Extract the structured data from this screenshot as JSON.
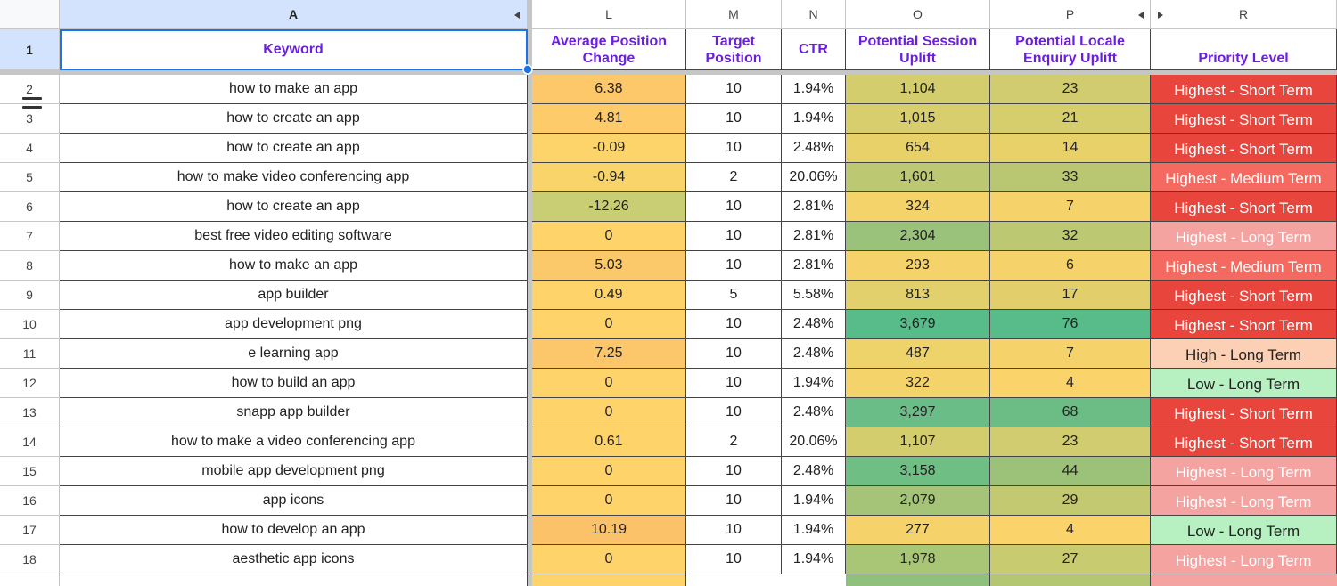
{
  "columns": [
    "A",
    "L",
    "M",
    "N",
    "O",
    "P",
    "R"
  ],
  "row_numbers": [
    1,
    2,
    3,
    4,
    5,
    6,
    7,
    8,
    9,
    10,
    11,
    12,
    13,
    14,
    15,
    16,
    17,
    18
  ],
  "header": [
    "Keyword",
    "Average Position Change",
    "Target Position",
    "CTR",
    "Potential Session Uplift",
    "Potential Locale Enquiry Uplift",
    "Priority Level"
  ],
  "rows": [
    [
      "how to make an app",
      "6.38",
      "10",
      "1.94%",
      "1,104",
      "23",
      "Highest - Short Term"
    ],
    [
      "how to create an app",
      "4.81",
      "10",
      "1.94%",
      "1,015",
      "21",
      "Highest - Short Term"
    ],
    [
      "how to create an app",
      "-0.09",
      "10",
      "2.48%",
      "654",
      "14",
      "Highest - Short Term"
    ],
    [
      "how to make video conferencing app",
      "-0.94",
      "2",
      "20.06%",
      "1,601",
      "33",
      "Highest - Medium Term"
    ],
    [
      "how to create an app",
      "-12.26",
      "10",
      "2.81%",
      "324",
      "7",
      "Highest - Short Term"
    ],
    [
      "best free video editing software",
      "0",
      "10",
      "2.81%",
      "2,304",
      "32",
      "Highest - Long Term"
    ],
    [
      "how to make an app",
      "5.03",
      "10",
      "2.81%",
      "293",
      "6",
      "Highest - Medium Term"
    ],
    [
      "app builder",
      "0.49",
      "5",
      "5.58%",
      "813",
      "17",
      "Highest - Short Term"
    ],
    [
      "app development png",
      "0",
      "10",
      "2.48%",
      "3,679",
      "76",
      "Highest - Short Term"
    ],
    [
      "e learning app",
      "7.25",
      "10",
      "2.48%",
      "487",
      "7",
      "High - Long Term"
    ],
    [
      "how to build an app",
      "0",
      "10",
      "1.94%",
      "322",
      "4",
      "Low - Long Term"
    ],
    [
      "snapp app builder",
      "0",
      "10",
      "2.48%",
      "3,297",
      "68",
      "Highest - Short Term"
    ],
    [
      "how to make a video conferencing app",
      "0.61",
      "2",
      "20.06%",
      "1,107",
      "23",
      "Highest - Short Term"
    ],
    [
      "mobile app development png",
      "0",
      "10",
      "2.48%",
      "3,158",
      "44",
      "Highest - Long Term"
    ],
    [
      "app icons",
      "0",
      "10",
      "1.94%",
      "2,079",
      "29",
      "Highest - Long Term"
    ],
    [
      "how to develop an app",
      "10.19",
      "10",
      "1.94%",
      "277",
      "4",
      "Low - Long Term"
    ],
    [
      "aesthetic app icons",
      "0",
      "10",
      "1.94%",
      "1,978",
      "27",
      "Highest - Long Term"
    ]
  ],
  "fills": [
    [
      "#fcc86a",
      "#d4cd6e",
      "#d0cc6f",
      "#e8453c"
    ],
    [
      "#fdcb6a",
      "#d8ce6d",
      "#d6ce6d",
      "#e8453c"
    ],
    [
      "#fdd46a",
      "#e9d16a",
      "#e9d16a",
      "#e8453c"
    ],
    [
      "#f9d46b",
      "#bdc872",
      "#b9c773",
      "#f46a60"
    ],
    [
      "#c9cd73",
      "#f4d36a",
      "#f5d36a",
      "#e8453c"
    ],
    [
      "#fed46a",
      "#9ac27a",
      "#bdc872",
      "#f4a3a0"
    ],
    [
      "#fcc96a",
      "#f6d36a",
      "#f6d36a",
      "#f46a60"
    ],
    [
      "#fdd36a",
      "#e1d06c",
      "#e2cf6c",
      "#e8453c"
    ],
    [
      "#fed46a",
      "#57bb8a",
      "#57bb8a",
      "#e8453c"
    ],
    [
      "#fcc76a",
      "#eed26a",
      "#f5d36a",
      "#fcd0b4"
    ],
    [
      "#fed46a",
      "#f4d36a",
      "#fad46a",
      "#b7f1c2"
    ],
    [
      "#fed46a",
      "#6abd86",
      "#6cbd85",
      "#e8453c"
    ],
    [
      "#fdd36a",
      "#d4cd6e",
      "#d0cc6f",
      "#e8453c"
    ],
    [
      "#fed46a",
      "#6fbe84",
      "#9cc27a",
      "#f4a3a0"
    ],
    [
      "#fed46a",
      "#a5c477",
      "#c3c971",
      "#f4a3a0"
    ],
    [
      "#fbc26a",
      "#f6d36a",
      "#fad46a",
      "#b7f1c2"
    ],
    [
      "#fed46a",
      "#a9c576",
      "#c9cb70",
      "#f4a3a0"
    ]
  ]
}
